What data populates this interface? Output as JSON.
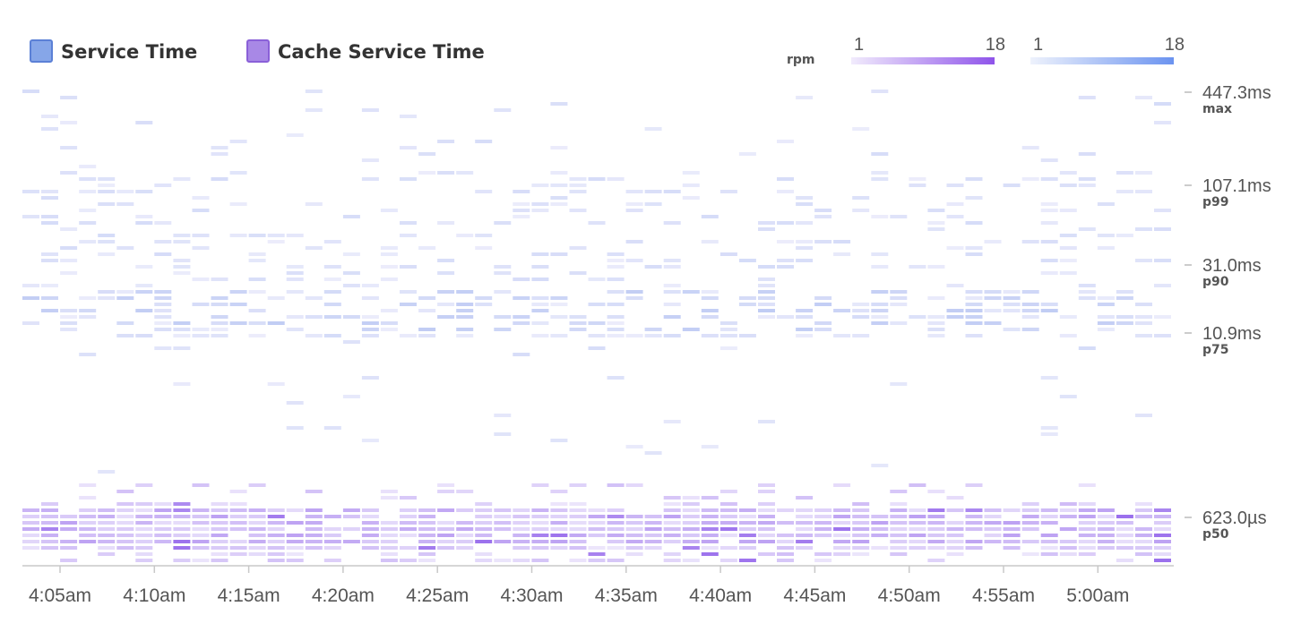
{
  "chart_data": {
    "type": "heatmap",
    "title": "",
    "x_ticks": [
      "4:05am",
      "4:10am",
      "4:15am",
      "4:20am",
      "4:25am",
      "4:30am",
      "4:35am",
      "4:40am",
      "4:45am",
      "4:50am",
      "4:55am",
      "5:00am"
    ],
    "y_ticks": [
      {
        "value": "447.3ms",
        "label": "max"
      },
      {
        "value": "107.1ms",
        "label": "p99"
      },
      {
        "value": "31.0ms",
        "label": "p90"
      },
      {
        "value": "10.9ms",
        "label": "p75"
      },
      {
        "value": "623.0µs",
        "label": "p50"
      }
    ],
    "series": [
      {
        "name": "Service Time",
        "color": "#6b93e6",
        "scale_min": "1",
        "scale_max": "18"
      },
      {
        "name": "Cache Service Time",
        "color": "#9b6be8",
        "scale_min": "1",
        "scale_max": "18"
      }
    ],
    "scale_unit_label": "rpm",
    "rpm_range": [
      1,
      18
    ],
    "grid": false,
    "legend_position": "top-left"
  }
}
